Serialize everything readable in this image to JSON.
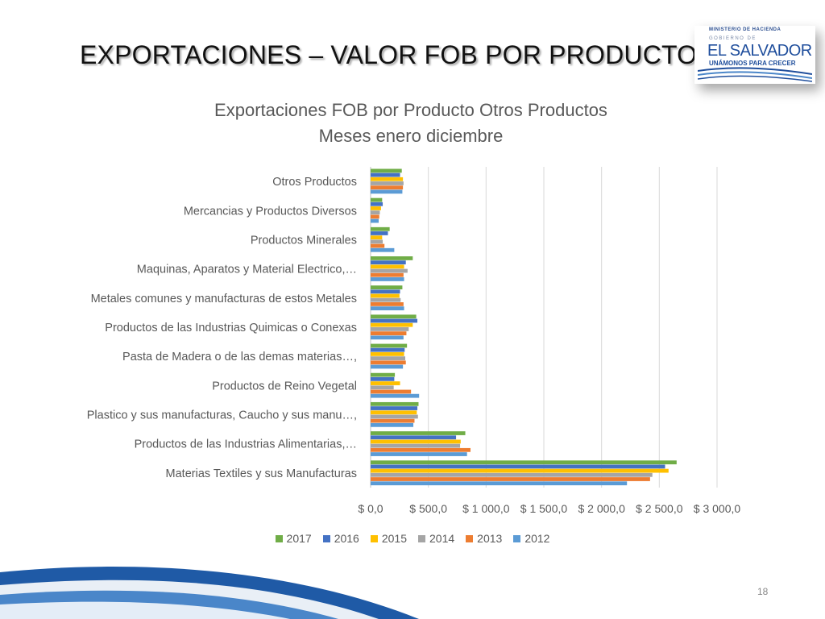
{
  "slide": {
    "title": "EXPORTACIONES – VALOR FOB POR PRODUCTOS",
    "page_number": "18"
  },
  "logo": {
    "ministry": "MINISTERIO DE HACIENDA",
    "government": "GOBIERNO DE",
    "country": "EL SALVADOR",
    "tagline": "UNÁMONOS PARA CRECER"
  },
  "colors": {
    "2017": "#70ad47",
    "2016": "#4472c4",
    "2015": "#ffc000",
    "2014": "#a5a5a5",
    "2013": "#ed7d31",
    "2012": "#5b9bd5"
  },
  "chart_data": {
    "type": "bar",
    "orientation": "horizontal",
    "title": "Exportaciones FOB por Producto Otros Productos",
    "subtitle": "Meses enero diciembre",
    "xlim": [
      0,
      3000
    ],
    "x_ticks": [
      "$ 0,0",
      "$ 500,0",
      "$ 1 000,0",
      "$ 1 500,0",
      "$ 2 000,0",
      "$ 2 500,0",
      "$ 3 000,0"
    ],
    "x_tick_values": [
      0,
      500,
      1000,
      1500,
      2000,
      2500,
      3000
    ],
    "grid": "vertical",
    "legend_position": "bottom",
    "categories": [
      "Otros Productos",
      "Mercancias y Productos Diversos",
      "Productos Minerales",
      "Maquinas, Aparatos y Material Electrico,…",
      "Metales comunes y manufacturas de estos Metales",
      "Productos de las Industrias Quimicas o Conexas",
      "Pasta de Madera o de las demas materias…,",
      "Productos de Reino Vegetal",
      "Plastico y sus manufacturas, Caucho y sus manu…,",
      "Productos de las Industrias Alimentarias,…",
      "Materias Textiles y sus Manufacturas"
    ],
    "series": [
      {
        "name": "2017",
        "values": [
          270,
          100,
          165,
          365,
          275,
          395,
          315,
          210,
          415,
          820,
          2650
        ]
      },
      {
        "name": "2016",
        "values": [
          255,
          105,
          150,
          305,
          255,
          405,
          295,
          205,
          405,
          740,
          2550
        ]
      },
      {
        "name": "2015",
        "values": [
          280,
          90,
          100,
          290,
          250,
          365,
          290,
          255,
          400,
          780,
          2580
        ]
      },
      {
        "name": "2014",
        "values": [
          285,
          80,
          105,
          320,
          260,
          330,
          300,
          200,
          410,
          775,
          2440
        ]
      },
      {
        "name": "2013",
        "values": [
          280,
          75,
          120,
          285,
          285,
          310,
          305,
          350,
          380,
          865,
          2420
        ]
      },
      {
        "name": "2012",
        "values": [
          275,
          70,
          205,
          290,
          290,
          285,
          280,
          420,
          370,
          835,
          2220
        ]
      }
    ]
  }
}
